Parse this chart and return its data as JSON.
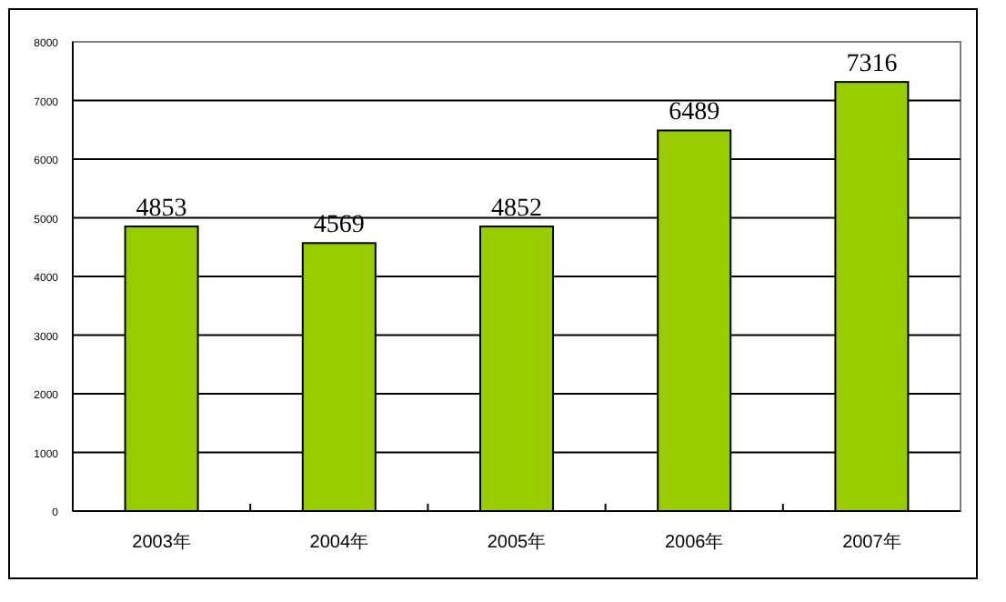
{
  "chart_data": {
    "type": "bar",
    "categories": [
      "2003年",
      "2004年",
      "2005年",
      "2006年",
      "2007年"
    ],
    "values": [
      4853,
      4569,
      4852,
      6489,
      7316
    ],
    "color": "#99cc00",
    "ylim": [
      0,
      8000
    ],
    "yticks": [
      0,
      1000,
      2000,
      3000,
      4000,
      5000,
      6000,
      7000,
      8000
    ],
    "grid": "y",
    "data_labels": true
  }
}
